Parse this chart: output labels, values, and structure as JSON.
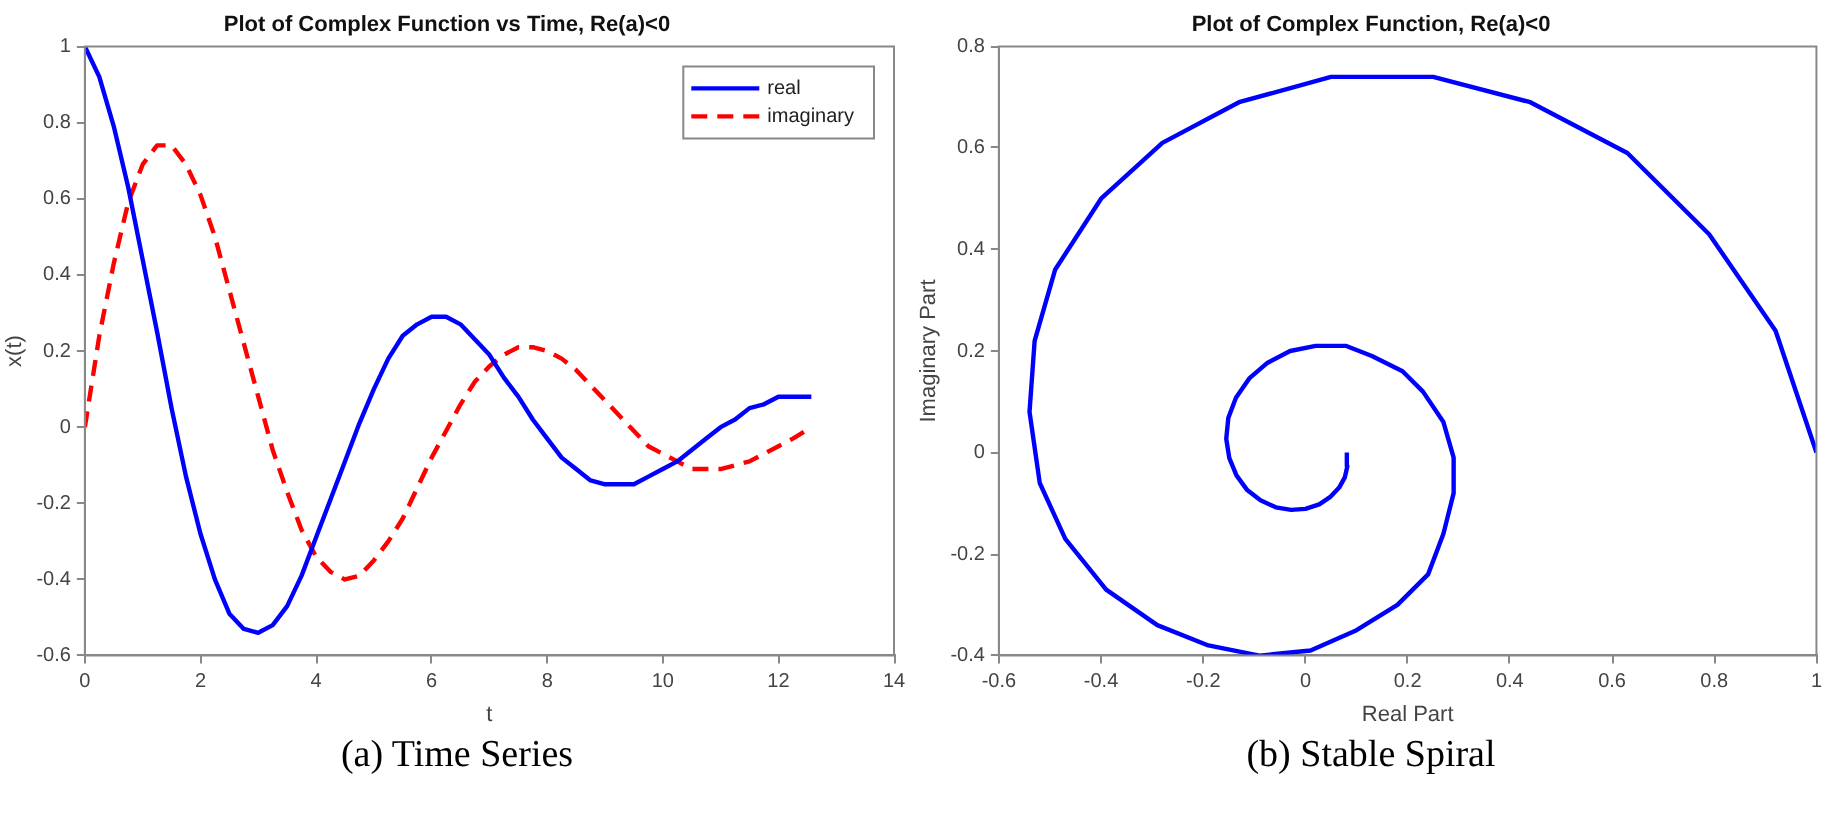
{
  "chart_data": [
    {
      "type": "line",
      "title": "Plot of Complex Function vs Time, Re(a)<0",
      "xlabel": "t",
      "ylabel": "x(t)",
      "x": [
        0,
        0.25,
        0.5,
        0.75,
        1,
        1.25,
        1.5,
        1.75,
        2,
        2.25,
        2.5,
        2.75,
        3,
        3.25,
        3.5,
        3.75,
        4,
        4.25,
        4.5,
        4.75,
        5,
        5.25,
        5.5,
        5.75,
        6,
        6.25,
        6.5,
        6.75,
        7,
        7.25,
        7.5,
        7.75,
        8,
        8.25,
        8.5,
        8.75,
        9,
        9.25,
        9.5,
        9.75,
        10,
        10.25,
        10.5,
        10.75,
        11,
        11.25,
        11.5,
        11.75,
        12,
        12.25,
        12.57
      ],
      "series": [
        {
          "name": "real",
          "color": "#0000ff",
          "line_style": "solid",
          "values": [
            1,
            0.92,
            0.79,
            0.63,
            0.44,
            0.25,
            0.05,
            -0.13,
            -0.28,
            -0.4,
            -0.49,
            -0.53,
            -0.54,
            -0.52,
            -0.47,
            -0.39,
            -0.29,
            -0.19,
            -0.09,
            0.01,
            0.1,
            0.18,
            0.24,
            0.27,
            0.29,
            0.29,
            0.27,
            0.23,
            0.19,
            0.13,
            0.08,
            0.02,
            -0.03,
            -0.08,
            -0.11,
            -0.14,
            -0.15,
            -0.15,
            -0.15,
            -0.13,
            -0.11,
            -0.09,
            -0.06,
            -0.03,
            0.0,
            0.02,
            0.05,
            0.06,
            0.08,
            0.08,
            0.08
          ]
        },
        {
          "name": "imaginary",
          "color": "#ff0000",
          "line_style": "dashed",
          "values": [
            0,
            0.24,
            0.43,
            0.59,
            0.69,
            0.74,
            0.74,
            0.69,
            0.61,
            0.5,
            0.36,
            0.22,
            0.08,
            -0.06,
            -0.17,
            -0.27,
            -0.34,
            -0.38,
            -0.4,
            -0.39,
            -0.35,
            -0.3,
            -0.24,
            -0.16,
            -0.08,
            -0.01,
            0.06,
            0.12,
            0.16,
            0.19,
            0.21,
            0.21,
            0.2,
            0.18,
            0.15,
            0.11,
            0.07,
            0.03,
            -0.01,
            -0.05,
            -0.07,
            -0.09,
            -0.11,
            -0.11,
            -0.11,
            -0.1,
            -0.09,
            -0.07,
            -0.05,
            -0.03,
            0.0
          ]
        }
      ],
      "xlim": [
        0,
        14
      ],
      "xticks": [
        0,
        2,
        4,
        6,
        8,
        10,
        12,
        14
      ],
      "ylim": [
        -0.6,
        1
      ],
      "yticks": [
        -0.6,
        -0.4,
        -0.2,
        0,
        0.2,
        0.4,
        0.6,
        0.8,
        1
      ],
      "grid": false,
      "legend": "top right",
      "marker": "none",
      "annotations": [
        "(a) Time Series"
      ]
    },
    {
      "type": "line",
      "title": "Plot of Complex Function, Re(a)<0",
      "xlabel": "Real Part",
      "ylabel": "Imaginary Part",
      "series": [
        {
          "color": "#0000ff",
          "line_style": "solid",
          "x": [
            1,
            0.92,
            0.79,
            0.63,
            0.44,
            0.25,
            0.05,
            -0.13,
            -0.28,
            -0.4,
            -0.49,
            -0.53,
            -0.54,
            -0.52,
            -0.47,
            -0.39,
            -0.29,
            -0.19,
            -0.09,
            0.01,
            0.1,
            0.18,
            0.24,
            0.27,
            0.29,
            0.29,
            0.27,
            0.23,
            0.19,
            0.13,
            0.08,
            0.02,
            -0.03,
            -0.074,
            -0.11,
            -0.136,
            -0.151,
            -0.155,
            -0.149,
            -0.135,
            -0.114,
            -0.088,
            -0.058,
            -0.028,
            0.0,
            0.027,
            0.048,
            0.066,
            0.077,
            0.082,
            0.081
          ],
          "values": [
            0,
            0.24,
            0.43,
            0.59,
            0.69,
            0.74,
            0.74,
            0.69,
            0.61,
            0.5,
            0.36,
            0.22,
            0.08,
            -0.06,
            -0.17,
            -0.27,
            -0.34,
            -0.38,
            -0.4,
            -0.39,
            -0.35,
            -0.3,
            -0.24,
            -0.16,
            -0.08,
            -0.01,
            0.06,
            0.12,
            0.16,
            0.19,
            0.21,
            0.21,
            0.2,
            0.177,
            0.146,
            0.108,
            0.068,
            0.027,
            -0.011,
            -0.045,
            -0.074,
            -0.094,
            -0.108,
            -0.113,
            -0.111,
            -0.102,
            -0.088,
            -0.069,
            -0.049,
            -0.027,
            0.0
          ]
        }
      ],
      "xlim": [
        -0.6,
        1
      ],
      "xticks": [
        -0.6,
        -0.4,
        -0.2,
        0,
        0.2,
        0.4,
        0.6,
        0.8,
        1
      ],
      "ylim": [
        -0.4,
        0.8
      ],
      "yticks": [
        -0.4,
        -0.2,
        0,
        0.2,
        0.4,
        0.6,
        0.8
      ],
      "grid": false,
      "legend": false,
      "marker": "none",
      "annotations": [
        "(b) Stable Spiral"
      ]
    }
  ]
}
